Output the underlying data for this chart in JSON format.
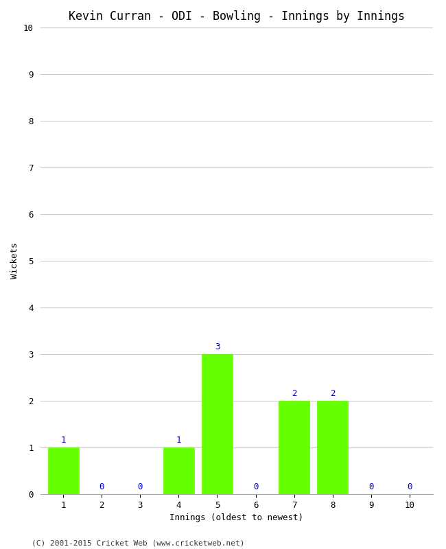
{
  "title": "Kevin Curran - ODI - Bowling - Innings by Innings",
  "xlabel": "Innings (oldest to newest)",
  "ylabel": "Wickets",
  "categories": [
    1,
    2,
    3,
    4,
    5,
    6,
    7,
    8,
    9,
    10
  ],
  "values": [
    1,
    0,
    0,
    1,
    3,
    0,
    2,
    2,
    0,
    0
  ],
  "bar_color": "#66ff00",
  "bar_edge_color": "#66ff00",
  "label_color": "#0000cc",
  "ylim": [
    0,
    10
  ],
  "yticks": [
    0,
    1,
    2,
    3,
    4,
    5,
    6,
    7,
    8,
    9,
    10
  ],
  "grid_color": "#cccccc",
  "background_color": "#ffffff",
  "title_fontsize": 12,
  "axis_label_fontsize": 9,
  "tick_fontsize": 9,
  "annotation_fontsize": 9,
  "copyright": "(C) 2001-2015 Cricket Web (www.cricketweb.net)",
  "copyright_fontsize": 8
}
